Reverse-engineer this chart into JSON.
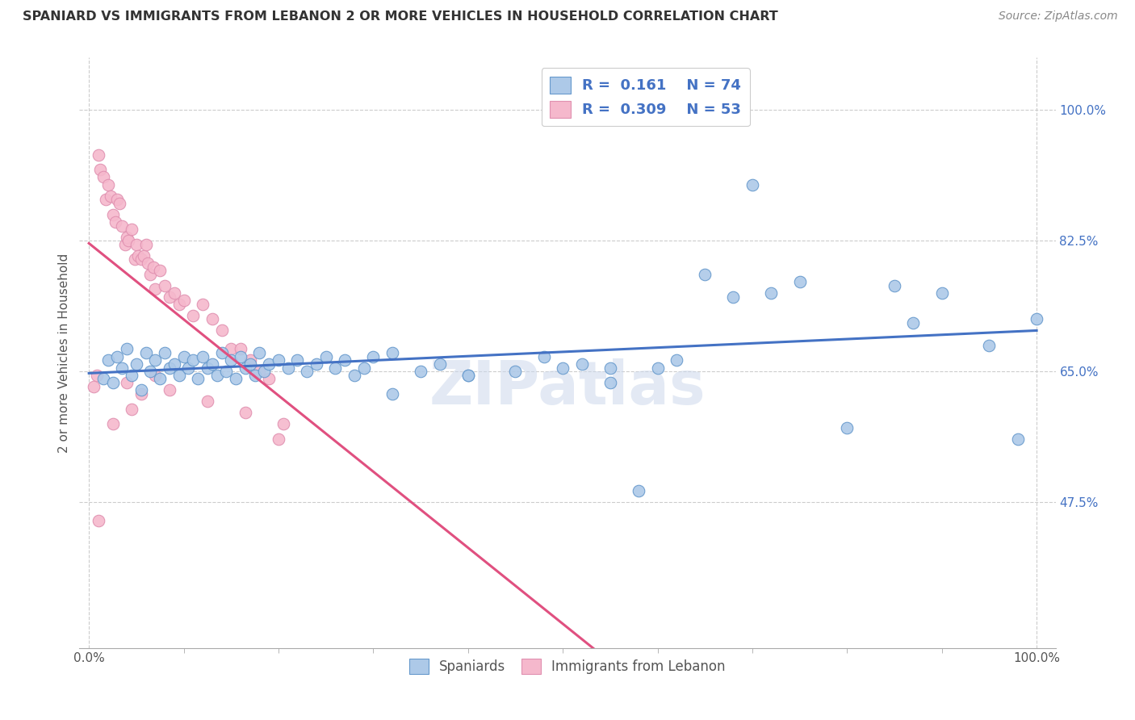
{
  "title": "SPANIARD VS IMMIGRANTS FROM LEBANON 2 OR MORE VEHICLES IN HOUSEHOLD CORRELATION CHART",
  "source": "Source: ZipAtlas.com",
  "ylabel": "2 or more Vehicles in Household",
  "yticks": [
    47.5,
    65.0,
    82.5,
    100.0
  ],
  "legend_entries": [
    {
      "label": "Spaniards",
      "R": "0.161",
      "N": "74",
      "fc": "#adc9e8",
      "ec": "#6699cc",
      "lc": "#4472c4"
    },
    {
      "label": "Immigrants from Lebanon",
      "R": "0.309",
      "N": "53",
      "fc": "#f5b8cc",
      "ec": "#e090b0",
      "lc": "#e05080"
    }
  ],
  "watermark": "ZIPatlas",
  "bg": "#ffffff",
  "grid_color": "#cccccc",
  "span_x": [
    1.5,
    2.0,
    2.5,
    3.0,
    3.5,
    4.0,
    4.5,
    5.0,
    5.5,
    6.0,
    6.5,
    7.0,
    7.5,
    8.0,
    8.5,
    9.0,
    9.5,
    10.0,
    10.5,
    11.0,
    11.5,
    12.0,
    12.5,
    13.0,
    13.5,
    14.0,
    14.5,
    15.0,
    15.5,
    16.0,
    16.5,
    17.0,
    17.5,
    18.0,
    18.5,
    19.0,
    20.0,
    21.0,
    22.0,
    23.0,
    24.0,
    25.0,
    26.0,
    27.0,
    28.0,
    29.0,
    30.0,
    32.0,
    35.0,
    37.0,
    40.0,
    45.0,
    48.0,
    50.0,
    52.0,
    55.0,
    58.0,
    60.0,
    62.0,
    65.0,
    68.0,
    72.0,
    75.0,
    80.0,
    85.0,
    87.0,
    90.0,
    32.0,
    40.0,
    55.0,
    70.0,
    95.0,
    98.0,
    100.0
  ],
  "span_y": [
    64.0,
    66.5,
    63.5,
    67.0,
    65.5,
    68.0,
    64.5,
    66.0,
    62.5,
    67.5,
    65.0,
    66.5,
    64.0,
    67.5,
    65.5,
    66.0,
    64.5,
    67.0,
    65.5,
    66.5,
    64.0,
    67.0,
    65.5,
    66.0,
    64.5,
    67.5,
    65.0,
    66.5,
    64.0,
    67.0,
    65.5,
    66.0,
    64.5,
    67.5,
    65.0,
    66.0,
    66.5,
    65.5,
    66.5,
    65.0,
    66.0,
    67.0,
    65.5,
    66.5,
    64.5,
    65.5,
    67.0,
    67.5,
    65.0,
    66.0,
    64.5,
    65.0,
    67.0,
    65.5,
    66.0,
    65.5,
    49.0,
    65.5,
    66.5,
    78.0,
    75.0,
    75.5,
    77.0,
    57.5,
    76.5,
    71.5,
    75.5,
    62.0,
    64.5,
    63.5,
    90.0,
    68.5,
    56.0,
    72.0
  ],
  "leb_x": [
    0.5,
    0.8,
    1.0,
    1.2,
    1.5,
    1.8,
    2.0,
    2.3,
    2.5,
    2.8,
    3.0,
    3.2,
    3.5,
    3.8,
    4.0,
    4.2,
    4.5,
    4.8,
    5.0,
    5.2,
    5.5,
    5.8,
    6.0,
    6.2,
    6.5,
    6.8,
    7.0,
    7.5,
    8.0,
    8.5,
    9.0,
    9.5,
    10.0,
    11.0,
    12.0,
    13.0,
    14.0,
    15.0,
    16.0,
    17.0,
    18.0,
    19.0,
    20.0,
    4.0,
    5.5,
    7.0,
    1.0,
    2.5,
    4.5,
    8.5,
    12.5,
    16.5,
    20.5
  ],
  "leb_y": [
    63.0,
    64.5,
    94.0,
    92.0,
    91.0,
    88.0,
    90.0,
    88.5,
    86.0,
    85.0,
    88.0,
    87.5,
    84.5,
    82.0,
    83.0,
    82.5,
    84.0,
    80.0,
    82.0,
    80.5,
    80.0,
    80.5,
    82.0,
    79.5,
    78.0,
    79.0,
    76.0,
    78.5,
    76.5,
    75.0,
    75.5,
    74.0,
    74.5,
    72.5,
    74.0,
    72.0,
    70.5,
    68.0,
    68.0,
    66.5,
    65.0,
    64.0,
    56.0,
    63.5,
    62.0,
    64.5,
    45.0,
    58.0,
    60.0,
    62.5,
    61.0,
    59.5,
    58.0
  ]
}
